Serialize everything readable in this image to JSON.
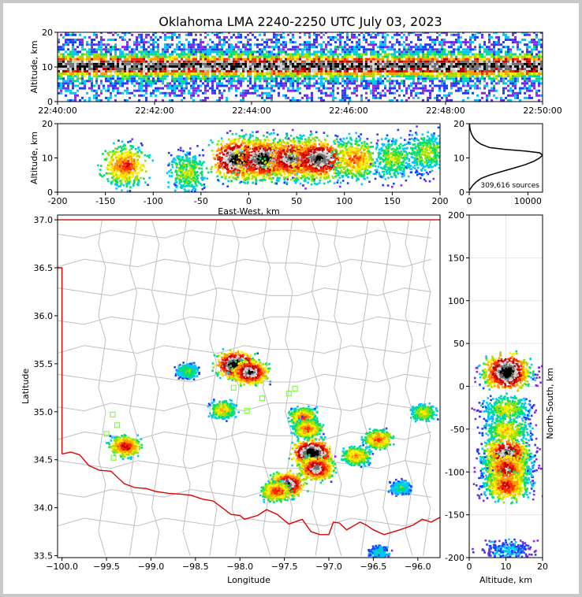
{
  "title": "Oklahoma LMA 2240-2250 UTC July 03, 2023",
  "colors": {
    "density_scale": [
      "#8a2be2",
      "#1e3cff",
      "#00c8ff",
      "#00e070",
      "#a0e000",
      "#ffee00",
      "#ff9a00",
      "#ff2a00",
      "#c00000",
      "#d0d0d0",
      "#707070",
      "#000000"
    ],
    "state_boundary": "#e00000",
    "county_lines": "#c0c0c0",
    "stations": "#80ff40",
    "profile_line": "#000000"
  },
  "chart_data": [
    {
      "id": "time-altitude",
      "type": "heatmap",
      "ylabel": "Altitude, km",
      "xlabel": "",
      "x_range": [
        "22:40:00",
        "22:50:00"
      ],
      "ylim": [
        0,
        20
      ],
      "x_ticks": [
        "22:40:00",
        "22:42:00",
        "22:44:00",
        "22:46:00",
        "22:48:00",
        "22:50:00"
      ],
      "y_ticks": [
        0,
        10,
        20
      ],
      "peak_altitude_km": 10
    },
    {
      "id": "ew-altitude",
      "type": "heatmap",
      "xlabel": "East-West, km",
      "ylabel": "Altitude, km",
      "xlim": [
        -200,
        200
      ],
      "ylim": [
        0,
        20
      ],
      "x_ticks": [
        -200,
        -150,
        -100,
        -50,
        0,
        50,
        100,
        150,
        200
      ],
      "y_ticks": [
        0,
        10,
        20
      ],
      "clusters": [
        {
          "x": -130,
          "z": 8,
          "intensity": 0.6
        },
        {
          "x": -65,
          "z": 6,
          "intensity": 0.35
        },
        {
          "x": -10,
          "z": 10,
          "intensity": 1.0
        },
        {
          "x": 15,
          "z": 10,
          "intensity": 0.95
        },
        {
          "x": 45,
          "z": 10,
          "intensity": 0.85
        },
        {
          "x": 72,
          "z": 10,
          "intensity": 0.9
        },
        {
          "x": 110,
          "z": 10,
          "intensity": 0.55
        },
        {
          "x": 150,
          "z": 10,
          "intensity": 0.35
        },
        {
          "x": 185,
          "z": 12,
          "intensity": 0.35
        }
      ]
    },
    {
      "id": "altitude-histogram",
      "type": "line",
      "xlabel": "",
      "ylabel": "",
      "xlim": [
        0,
        12500
      ],
      "ylim": [
        0,
        20
      ],
      "x_ticks": [
        0,
        10000
      ],
      "y_ticks": [
        0,
        10,
        20
      ],
      "annotation": "309,616 sources",
      "profile": [
        [
          0,
          0.5
        ],
        [
          200,
          1.0
        ],
        [
          600,
          2.0
        ],
        [
          1200,
          3.0
        ],
        [
          2000,
          4.0
        ],
        [
          3500,
          5.0
        ],
        [
          5500,
          6.0
        ],
        [
          7500,
          7.0
        ],
        [
          9500,
          8.0
        ],
        [
          11000,
          9.0
        ],
        [
          12000,
          10.0
        ],
        [
          12500,
          10.8
        ],
        [
          12000,
          11.5
        ],
        [
          9500,
          12.0
        ],
        [
          6000,
          12.5
        ],
        [
          3500,
          13.0
        ],
        [
          2000,
          14.0
        ],
        [
          1200,
          15.0
        ],
        [
          700,
          16.0
        ],
        [
          400,
          17.0
        ],
        [
          200,
          18.0
        ],
        [
          100,
          19.0
        ],
        [
          50,
          20.0
        ]
      ]
    },
    {
      "id": "plan-view",
      "type": "heatmap",
      "xlabel": "Longitude",
      "ylabel": "Latitude",
      "xlim": [
        -100.05,
        -95.75
      ],
      "ylim": [
        33.48,
        37.05
      ],
      "x_ticks": [
        -100.0,
        -99.5,
        -99.0,
        -98.5,
        -98.0,
        -97.5,
        -97.0,
        -96.5,
        -96.0
      ],
      "x_tick_labels": [
        "−100.0",
        "−99.5",
        "−99.0",
        "−98.5",
        "−98.0",
        "−97.5",
        "−97.0",
        "−96.5",
        "−96.0"
      ],
      "y_ticks": [
        33.5,
        34.0,
        34.5,
        35.0,
        35.5,
        36.0,
        36.5,
        37.0
      ],
      "clusters": [
        {
          "lon": -98.05,
          "lat": 35.5,
          "intensity": 1.0
        },
        {
          "lon": -97.9,
          "lat": 35.42,
          "intensity": 0.85
        },
        {
          "lon": -97.2,
          "lat": 34.58,
          "intensity": 1.0
        },
        {
          "lon": -97.15,
          "lat": 34.42,
          "intensity": 0.8
        },
        {
          "lon": -97.48,
          "lat": 34.25,
          "intensity": 0.85
        },
        {
          "lon": -97.6,
          "lat": 34.18,
          "intensity": 0.6
        },
        {
          "lon": -97.3,
          "lat": 34.95,
          "intensity": 0.55
        },
        {
          "lon": -97.25,
          "lat": 34.83,
          "intensity": 0.55
        },
        {
          "lon": -99.3,
          "lat": 34.65,
          "intensity": 0.65
        },
        {
          "lon": -98.2,
          "lat": 35.03,
          "intensity": 0.45
        },
        {
          "lon": -96.45,
          "lat": 34.72,
          "intensity": 0.55
        },
        {
          "lon": -96.7,
          "lat": 34.55,
          "intensity": 0.5
        },
        {
          "lon": -95.95,
          "lat": 35.0,
          "intensity": 0.4
        },
        {
          "lon": -98.6,
          "lat": 35.43,
          "intensity": 0.3
        },
        {
          "lon": -96.2,
          "lat": 34.22,
          "intensity": 0.25
        },
        {
          "lon": -96.45,
          "lat": 33.55,
          "intensity": 0.2
        }
      ],
      "stations": [
        [
          -99.43,
          34.97
        ],
        [
          -99.38,
          34.86
        ],
        [
          -99.5,
          34.77
        ],
        [
          -99.42,
          34.52
        ],
        [
          -98.07,
          35.25
        ],
        [
          -97.92,
          35.01
        ],
        [
          -97.75,
          35.14
        ],
        [
          -97.45,
          35.19
        ],
        [
          -97.38,
          35.24
        ]
      ],
      "state_boundary": [
        [
          -100.05,
          37.0
        ],
        [
          -95.75,
          37.0
        ]
      ],
      "panhandle_edge": [
        [
          -100.05,
          36.5
        ],
        [
          -100.0,
          36.5
        ],
        [
          -100.0,
          34.56
        ]
      ],
      "red_river": [
        [
          -100.0,
          34.56
        ],
        [
          -99.9,
          34.58
        ],
        [
          -99.8,
          34.55
        ],
        [
          -99.7,
          34.44
        ],
        [
          -99.58,
          34.39
        ],
        [
          -99.45,
          34.38
        ],
        [
          -99.3,
          34.25
        ],
        [
          -99.18,
          34.21
        ],
        [
          -99.05,
          34.2
        ],
        [
          -98.95,
          34.17
        ],
        [
          -98.8,
          34.15
        ],
        [
          -98.65,
          34.14
        ],
        [
          -98.55,
          34.13
        ],
        [
          -98.42,
          34.09
        ],
        [
          -98.3,
          34.07
        ],
        [
          -98.2,
          34.0
        ],
        [
          -98.1,
          33.93
        ],
        [
          -98.0,
          33.92
        ],
        [
          -97.95,
          33.88
        ],
        [
          -97.8,
          33.92
        ],
        [
          -97.7,
          33.98
        ],
        [
          -97.58,
          33.93
        ],
        [
          -97.45,
          33.83
        ],
        [
          -97.3,
          33.88
        ],
        [
          -97.2,
          33.75
        ],
        [
          -97.1,
          33.72
        ],
        [
          -97.0,
          33.72
        ],
        [
          -96.95,
          33.85
        ],
        [
          -96.88,
          33.84
        ],
        [
          -96.8,
          33.77
        ],
        [
          -96.65,
          33.85
        ],
        [
          -96.58,
          33.82
        ],
        [
          -96.5,
          33.77
        ],
        [
          -96.38,
          33.72
        ],
        [
          -96.2,
          33.77
        ],
        [
          -96.05,
          33.82
        ],
        [
          -95.95,
          33.88
        ],
        [
          -95.85,
          33.85
        ],
        [
          -95.75,
          33.9
        ]
      ]
    },
    {
      "id": "ns-altitude",
      "type": "heatmap",
      "xlabel": "Altitude, km",
      "ylabel": "North-South, km",
      "xlim": [
        0,
        20
      ],
      "ylim": [
        -200,
        200
      ],
      "x_ticks": [
        0,
        10,
        20
      ],
      "y_ticks": [
        -200,
        -150,
        -100,
        -50,
        0,
        50,
        100,
        150,
        200
      ],
      "clusters": [
        {
          "z": 10,
          "y": 18,
          "intensity": 1.0
        },
        {
          "z": 10,
          "y": -25,
          "intensity": 0.4
        },
        {
          "z": 10,
          "y": -50,
          "intensity": 0.45
        },
        {
          "z": 10,
          "y": -78,
          "intensity": 0.85
        },
        {
          "z": 10,
          "y": -95,
          "intensity": 0.7
        },
        {
          "z": 10,
          "y": -115,
          "intensity": 0.65
        },
        {
          "z": 10,
          "y": -190,
          "intensity": 0.15
        }
      ]
    }
  ]
}
